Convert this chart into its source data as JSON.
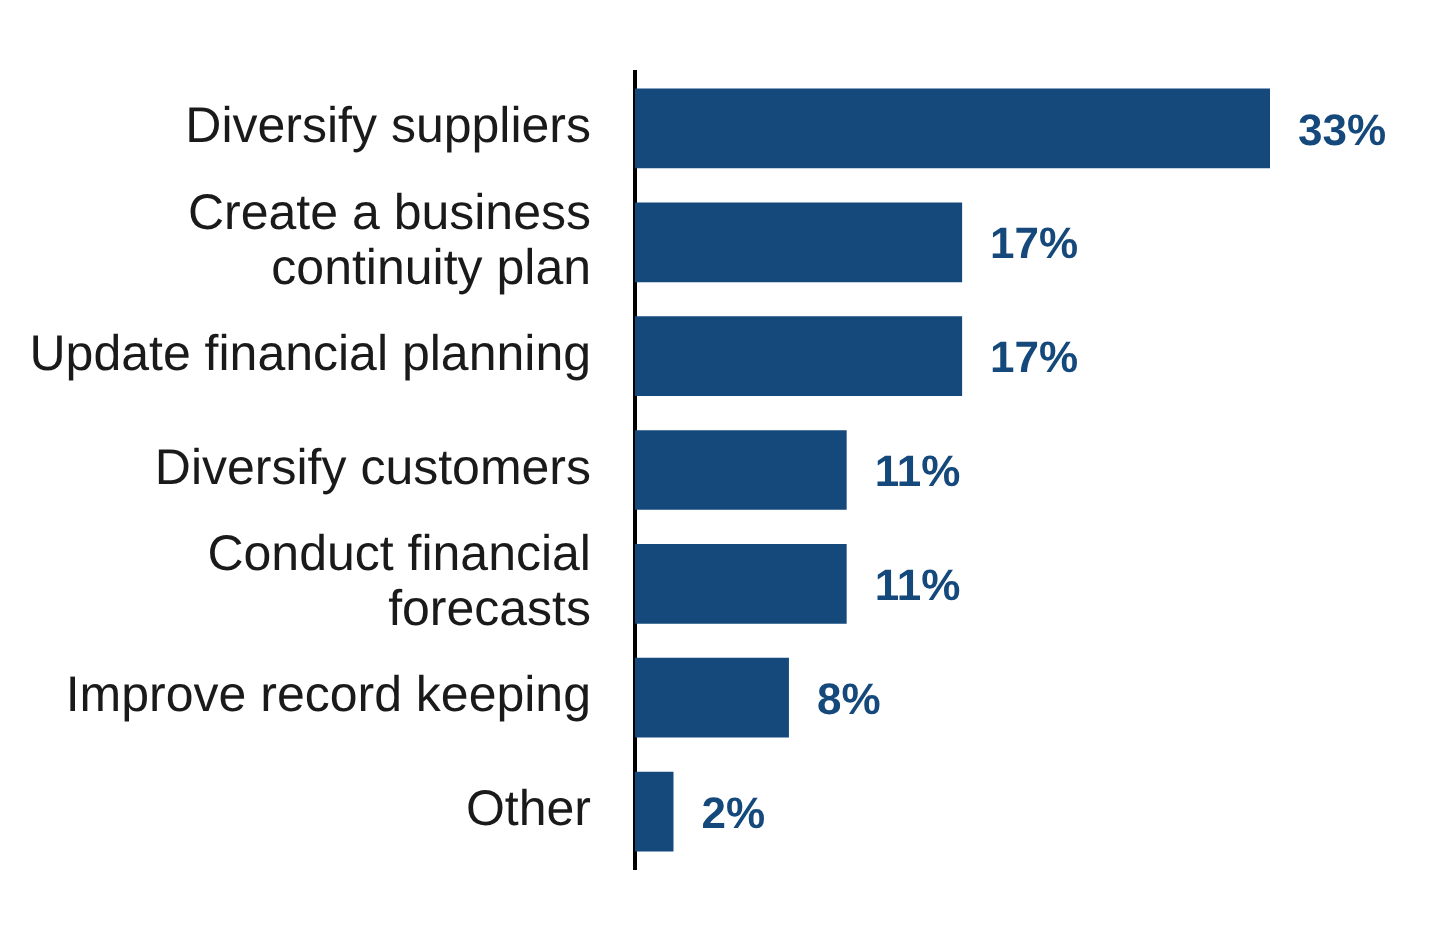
{
  "chart_data": {
    "type": "bar",
    "orientation": "horizontal",
    "categories": [
      "Diversify suppliers",
      "Create a business continuity plan",
      "Update financial planning",
      "Diversify customers",
      "Conduct financial forecasts",
      "Improve record keeping",
      "Other"
    ],
    "values": [
      33,
      17,
      17,
      11,
      11,
      8,
      2
    ],
    "value_labels": [
      "33%",
      "17%",
      "17%",
      "11%",
      "11%",
      "8%",
      "2%"
    ],
    "color": "#15497c",
    "grid": false,
    "legend": false,
    "tick_labels": "y"
  }
}
